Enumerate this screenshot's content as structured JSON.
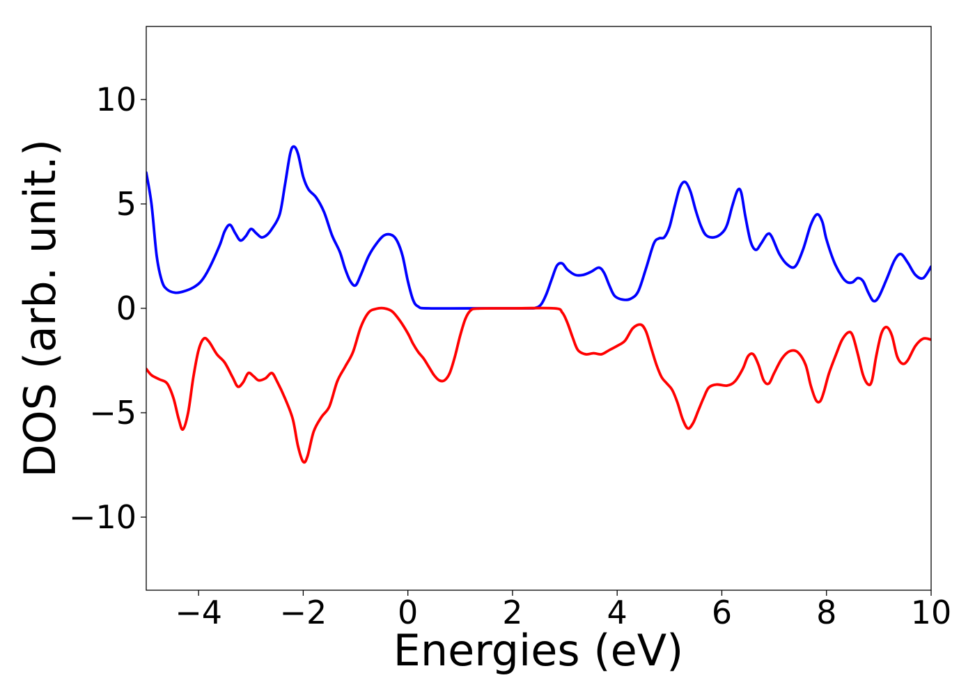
{
  "chart_data": {
    "type": "line",
    "title": "",
    "xlabel": "Energies (eV)",
    "ylabel": "DOS (arb. unit.)",
    "xlim": [
      -5,
      10
    ],
    "ylim": [
      -13.5,
      13.5
    ],
    "x_ticks": [
      -4,
      -2,
      0,
      2,
      4,
      6,
      8,
      10
    ],
    "y_ticks": [
      -10,
      -5,
      0,
      5,
      10
    ],
    "x_tick_labels": [
      "−4",
      "−2",
      "0",
      "2",
      "4",
      "6",
      "8",
      "10"
    ],
    "y_tick_labels": [
      "−10",
      "−5",
      "0",
      "5",
      "10"
    ],
    "grid": false,
    "legend": "none",
    "series": [
      {
        "color": "#0000ff",
        "points": [
          [
            -5.0,
            6.5
          ],
          [
            -4.9,
            5.0
          ],
          [
            -4.8,
            2.5
          ],
          [
            -4.7,
            1.3
          ],
          [
            -4.6,
            0.9
          ],
          [
            -4.45,
            0.75
          ],
          [
            -4.3,
            0.8
          ],
          [
            -4.1,
            1.0
          ],
          [
            -3.95,
            1.3
          ],
          [
            -3.8,
            1.9
          ],
          [
            -3.6,
            3.0
          ],
          [
            -3.5,
            3.7
          ],
          [
            -3.4,
            4.0
          ],
          [
            -3.3,
            3.6
          ],
          [
            -3.2,
            3.25
          ],
          [
            -3.1,
            3.45
          ],
          [
            -3.0,
            3.8
          ],
          [
            -2.9,
            3.6
          ],
          [
            -2.8,
            3.4
          ],
          [
            -2.7,
            3.5
          ],
          [
            -2.6,
            3.8
          ],
          [
            -2.45,
            4.5
          ],
          [
            -2.35,
            5.9
          ],
          [
            -2.25,
            7.4
          ],
          [
            -2.18,
            7.75
          ],
          [
            -2.1,
            7.4
          ],
          [
            -2.0,
            6.3
          ],
          [
            -1.9,
            5.7
          ],
          [
            -1.75,
            5.3
          ],
          [
            -1.6,
            4.6
          ],
          [
            -1.45,
            3.5
          ],
          [
            -1.3,
            2.7
          ],
          [
            -1.2,
            1.9
          ],
          [
            -1.1,
            1.3
          ],
          [
            -1.0,
            1.1
          ],
          [
            -0.9,
            1.6
          ],
          [
            -0.75,
            2.5
          ],
          [
            -0.6,
            3.1
          ],
          [
            -0.45,
            3.5
          ],
          [
            -0.3,
            3.5
          ],
          [
            -0.2,
            3.2
          ],
          [
            -0.1,
            2.5
          ],
          [
            0.0,
            1.3
          ],
          [
            0.1,
            0.4
          ],
          [
            0.2,
            0.08
          ],
          [
            0.4,
            0.0
          ],
          [
            1.5,
            0.0
          ],
          [
            2.3,
            0.0
          ],
          [
            2.45,
            0.03
          ],
          [
            2.55,
            0.2
          ],
          [
            2.65,
            0.7
          ],
          [
            2.75,
            1.4
          ],
          [
            2.85,
            2.05
          ],
          [
            2.95,
            2.15
          ],
          [
            3.05,
            1.85
          ],
          [
            3.2,
            1.6
          ],
          [
            3.35,
            1.6
          ],
          [
            3.5,
            1.75
          ],
          [
            3.65,
            1.95
          ],
          [
            3.75,
            1.7
          ],
          [
            3.85,
            1.1
          ],
          [
            3.95,
            0.6
          ],
          [
            4.1,
            0.42
          ],
          [
            4.25,
            0.45
          ],
          [
            4.4,
            0.8
          ],
          [
            4.55,
            1.9
          ],
          [
            4.7,
            3.1
          ],
          [
            4.8,
            3.35
          ],
          [
            4.9,
            3.4
          ],
          [
            5.0,
            3.9
          ],
          [
            5.1,
            4.9
          ],
          [
            5.2,
            5.8
          ],
          [
            5.3,
            6.05
          ],
          [
            5.4,
            5.6
          ],
          [
            5.5,
            4.7
          ],
          [
            5.6,
            3.95
          ],
          [
            5.7,
            3.5
          ],
          [
            5.85,
            3.4
          ],
          [
            6.0,
            3.6
          ],
          [
            6.1,
            4.0
          ],
          [
            6.2,
            4.9
          ],
          [
            6.3,
            5.65
          ],
          [
            6.37,
            5.55
          ],
          [
            6.45,
            4.4
          ],
          [
            6.55,
            3.2
          ],
          [
            6.65,
            2.8
          ],
          [
            6.75,
            3.1
          ],
          [
            6.87,
            3.55
          ],
          [
            6.95,
            3.45
          ],
          [
            7.1,
            2.6
          ],
          [
            7.25,
            2.1
          ],
          [
            7.4,
            2.0
          ],
          [
            7.55,
            2.8
          ],
          [
            7.7,
            4.0
          ],
          [
            7.82,
            4.5
          ],
          [
            7.92,
            4.15
          ],
          [
            8.0,
            3.3
          ],
          [
            8.15,
            2.2
          ],
          [
            8.3,
            1.5
          ],
          [
            8.4,
            1.25
          ],
          [
            8.5,
            1.25
          ],
          [
            8.6,
            1.45
          ],
          [
            8.7,
            1.3
          ],
          [
            8.8,
            0.75
          ],
          [
            8.9,
            0.35
          ],
          [
            9.0,
            0.55
          ],
          [
            9.15,
            1.4
          ],
          [
            9.3,
            2.3
          ],
          [
            9.42,
            2.6
          ],
          [
            9.55,
            2.2
          ],
          [
            9.7,
            1.6
          ],
          [
            9.85,
            1.45
          ],
          [
            10.0,
            2.0
          ]
        ]
      },
      {
        "color": "#ff0000",
        "points": [
          [
            -5.0,
            -2.9
          ],
          [
            -4.9,
            -3.2
          ],
          [
            -4.75,
            -3.4
          ],
          [
            -4.6,
            -3.6
          ],
          [
            -4.48,
            -4.3
          ],
          [
            -4.38,
            -5.3
          ],
          [
            -4.3,
            -5.8
          ],
          [
            -4.2,
            -5.0
          ],
          [
            -4.1,
            -3.3
          ],
          [
            -4.0,
            -2.0
          ],
          [
            -3.9,
            -1.45
          ],
          [
            -3.8,
            -1.6
          ],
          [
            -3.65,
            -2.2
          ],
          [
            -3.5,
            -2.6
          ],
          [
            -3.35,
            -3.3
          ],
          [
            -3.25,
            -3.75
          ],
          [
            -3.15,
            -3.55
          ],
          [
            -3.05,
            -3.1
          ],
          [
            -2.95,
            -3.25
          ],
          [
            -2.85,
            -3.45
          ],
          [
            -2.72,
            -3.35
          ],
          [
            -2.6,
            -3.1
          ],
          [
            -2.5,
            -3.5
          ],
          [
            -2.35,
            -4.3
          ],
          [
            -2.2,
            -5.3
          ],
          [
            -2.1,
            -6.6
          ],
          [
            -2.0,
            -7.35
          ],
          [
            -1.92,
            -7.1
          ],
          [
            -1.8,
            -5.9
          ],
          [
            -1.65,
            -5.2
          ],
          [
            -1.5,
            -4.7
          ],
          [
            -1.35,
            -3.5
          ],
          [
            -1.2,
            -2.8
          ],
          [
            -1.05,
            -2.1
          ],
          [
            -0.9,
            -0.9
          ],
          [
            -0.75,
            -0.2
          ],
          [
            -0.6,
            -0.02
          ],
          [
            -0.45,
            0.0
          ],
          [
            -0.3,
            -0.15
          ],
          [
            -0.15,
            -0.6
          ],
          [
            0.0,
            -1.2
          ],
          [
            0.1,
            -1.7
          ],
          [
            0.2,
            -2.1
          ],
          [
            0.3,
            -2.4
          ],
          [
            0.4,
            -2.8
          ],
          [
            0.5,
            -3.2
          ],
          [
            0.6,
            -3.45
          ],
          [
            0.7,
            -3.45
          ],
          [
            0.8,
            -3.1
          ],
          [
            0.9,
            -2.3
          ],
          [
            1.0,
            -1.3
          ],
          [
            1.1,
            -0.5
          ],
          [
            1.2,
            -0.1
          ],
          [
            1.35,
            -0.01
          ],
          [
            2.0,
            0.0
          ],
          [
            2.8,
            0.0
          ],
          [
            2.95,
            -0.2
          ],
          [
            3.05,
            -0.7
          ],
          [
            3.15,
            -1.4
          ],
          [
            3.25,
            -2.0
          ],
          [
            3.4,
            -2.2
          ],
          [
            3.55,
            -2.15
          ],
          [
            3.7,
            -2.2
          ],
          [
            3.85,
            -2.0
          ],
          [
            4.0,
            -1.8
          ],
          [
            4.15,
            -1.55
          ],
          [
            4.3,
            -0.95
          ],
          [
            4.45,
            -0.78
          ],
          [
            4.55,
            -1.1
          ],
          [
            4.65,
            -1.9
          ],
          [
            4.75,
            -2.7
          ],
          [
            4.85,
            -3.3
          ],
          [
            4.95,
            -3.6
          ],
          [
            5.05,
            -3.9
          ],
          [
            5.15,
            -4.5
          ],
          [
            5.25,
            -5.3
          ],
          [
            5.35,
            -5.75
          ],
          [
            5.45,
            -5.5
          ],
          [
            5.55,
            -4.9
          ],
          [
            5.65,
            -4.3
          ],
          [
            5.75,
            -3.8
          ],
          [
            5.9,
            -3.65
          ],
          [
            6.1,
            -3.7
          ],
          [
            6.25,
            -3.5
          ],
          [
            6.4,
            -2.9
          ],
          [
            6.5,
            -2.3
          ],
          [
            6.6,
            -2.2
          ],
          [
            6.7,
            -2.7
          ],
          [
            6.8,
            -3.45
          ],
          [
            6.9,
            -3.6
          ],
          [
            7.0,
            -3.1
          ],
          [
            7.15,
            -2.4
          ],
          [
            7.3,
            -2.05
          ],
          [
            7.45,
            -2.1
          ],
          [
            7.6,
            -2.7
          ],
          [
            7.7,
            -3.7
          ],
          [
            7.8,
            -4.4
          ],
          [
            7.88,
            -4.45
          ],
          [
            7.95,
            -4.0
          ],
          [
            8.05,
            -3.1
          ],
          [
            8.2,
            -2.1
          ],
          [
            8.3,
            -1.5
          ],
          [
            8.42,
            -1.15
          ],
          [
            8.5,
            -1.3
          ],
          [
            8.6,
            -2.2
          ],
          [
            8.7,
            -3.2
          ],
          [
            8.8,
            -3.65
          ],
          [
            8.87,
            -3.45
          ],
          [
            8.95,
            -2.3
          ],
          [
            9.05,
            -1.2
          ],
          [
            9.15,
            -0.9
          ],
          [
            9.25,
            -1.3
          ],
          [
            9.35,
            -2.3
          ],
          [
            9.45,
            -2.65
          ],
          [
            9.55,
            -2.5
          ],
          [
            9.7,
            -1.8
          ],
          [
            9.85,
            -1.45
          ],
          [
            10.0,
            -1.5
          ]
        ]
      }
    ]
  }
}
